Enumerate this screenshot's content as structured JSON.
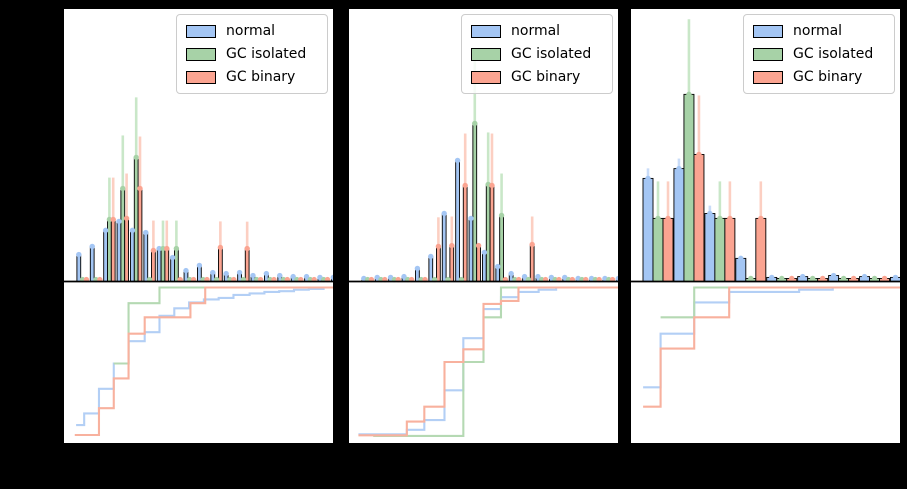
{
  "legend": {
    "items": [
      "normal",
      "GC isolated",
      "GC binary"
    ]
  },
  "colors": {
    "background": "#000000",
    "panel": "#ffffff",
    "bar_edge": "#000000",
    "divider": "#000000",
    "normal_fill": "#a4c6f4",
    "gc_isolated_fill": "#a7d2a7",
    "gc_binary_fill": "#fba491",
    "normal_err": "#c9dcf8",
    "gc_isolated_err": "#c9e7c8",
    "gc_binary_err": "#fccfc2",
    "normal_line": "#b3cff5",
    "gc_isolated_line": "#b5d9b3",
    "gc_binary_line": "#f8b19e",
    "legend_border": "#cccccc"
  },
  "chart_data": {
    "type": "bar",
    "subtype": "grouped histogram with error bars (top) + step CDF (bottom), three panels",
    "title": "",
    "xlabel": "",
    "ylabel": "",
    "ylim_hist": [
      0,
      1
    ],
    "ylim_cdf": [
      0,
      1
    ],
    "grid": false,
    "legend_position": "upper right",
    "series_names": [
      "normal",
      "GC isolated",
      "GC binary"
    ],
    "panels": [
      {
        "id": "left",
        "hist": {
          "first_frac": 0.048,
          "step_frac": 0.0498,
          "bar_frac": 0.01413,
          "series": [
            {
              "name": "normal",
              "values": [
                0.099,
                0.129,
                0.188,
                0.221,
                0.188,
                0.18,
                0.121,
                0.088,
                0.04,
                0.059,
                0.033,
                0.029,
                0.033,
                0.022,
                0.029,
                0.022,
                0.018,
                0.018,
                0.015,
                0.015
              ],
              "err_up": [
                0,
                0,
                0,
                0,
                0,
                0,
                0,
                0,
                0,
                0,
                0,
                0,
                0,
                0,
                0,
                0,
                0,
                0,
                0,
                0
              ]
            },
            {
              "name": "GC isolated",
              "values": [
                0.007,
                0.007,
                0.228,
                0.342,
                0.456,
                0.007,
                0.121,
                0.121,
                0.007,
                0.007,
                0.007,
                0.007,
                0.007,
                0.007,
                0.007,
                0.007,
                0.007,
                0.007,
                0.007,
                0.007
              ],
              "err_up": [
                0,
                0,
                0.154,
                0.195,
                0.221,
                0,
                0.103,
                0.103,
                0,
                0,
                0,
                0,
                0,
                0,
                0,
                0,
                0,
                0,
                0,
                0
              ]
            },
            {
              "name": "GC binary",
              "values": [
                0.007,
                0.007,
                0.228,
                0.232,
                0.342,
                0.114,
                0.121,
                0.007,
                0.007,
                0.007,
                0.125,
                0.007,
                0.121,
                0.007,
                0.007,
                0.007,
                0.007,
                0.007,
                0.007,
                0.007
              ],
              "err_up": [
                0,
                0,
                0.154,
                0.165,
                0.191,
                0.11,
                0.103,
                0,
                0,
                0,
                0.096,
                0,
                0.099,
                0,
                0,
                0,
                0,
                0,
                0,
                0
              ]
            }
          ]
        },
        "cdf": {
          "series": [
            {
              "name": "normal",
              "steps": [
                [
                  0.045,
                  0.077
                ],
                [
                  0.075,
                  0.155
                ],
                [
                  0.13,
                  0.32
                ],
                [
                  0.185,
                  0.49
                ],
                [
                  0.24,
                  0.64
                ],
                [
                  0.3,
                  0.7
                ],
                [
                  0.355,
                  0.81
                ],
                [
                  0.41,
                  0.86
                ],
                [
                  0.465,
                  0.9
                ],
                [
                  0.52,
                  0.92
                ],
                [
                  0.575,
                  0.93
                ],
                [
                  0.63,
                  0.95
                ],
                [
                  0.69,
                  0.96
                ],
                [
                  0.745,
                  0.97
                ],
                [
                  0.8,
                  0.975
                ],
                [
                  0.855,
                  0.985
                ],
                [
                  0.91,
                  0.99
                ],
                [
                  0.965,
                  1.0
                ]
              ]
            },
            {
              "name": "GC isolated",
              "steps": [
                [
                  0.185,
                  0.49
                ],
                [
                  0.24,
                  0.895
                ],
                [
                  0.355,
                  1.0
                ]
              ]
            },
            {
              "name": "GC binary",
              "steps": [
                [
                  0.04,
                  0.01
                ],
                [
                  0.13,
                  0.19
                ],
                [
                  0.185,
                  0.39
                ],
                [
                  0.24,
                  0.69
                ],
                [
                  0.3,
                  0.8
                ],
                [
                  0.47,
                  0.895
                ],
                [
                  0.525,
                  1.0
                ]
              ]
            }
          ]
        }
      },
      {
        "id": "middle",
        "hist": {
          "first_frac": 0.048,
          "step_frac": 0.0498,
          "bar_frac": 0.01413,
          "series": [
            {
              "name": "normal",
              "values": [
                0.011,
                0.015,
                0.015,
                0.018,
                0.048,
                0.092,
                0.25,
                0.445,
                0.232,
                0.107,
                0.055,
                0.029,
                0.018,
                0.018,
                0.015,
                0.015,
                0.011,
                0.011,
                0.011,
                0.011
              ],
              "err_up": [
                0,
                0,
                0,
                0,
                0,
                0,
                0,
                0,
                0,
                0,
                0,
                0,
                0,
                0,
                0,
                0,
                0,
                0,
                0,
                0
              ]
            },
            {
              "name": "GC isolated",
              "values": [
                0.007,
                0.007,
                0.007,
                0.007,
                0.007,
                0.007,
                0.007,
                0.007,
                0.581,
                0.357,
                0.243,
                0.007,
                0.007,
                0.007,
                0.007,
                0.007,
                0.007,
                0.007,
                0.007,
                0.007
              ],
              "err_up": [
                0,
                0,
                0,
                0,
                0,
                0,
                0,
                0,
                0.268,
                0.191,
                0.154,
                0,
                0,
                0,
                0,
                0,
                0,
                0,
                0,
                0
              ]
            },
            {
              "name": "GC binary",
              "values": [
                0.007,
                0.007,
                0.007,
                0.007,
                0.007,
                0.129,
                0.132,
                0.353,
                0.132,
                0.353,
                0.007,
                0.007,
                0.136,
                0.007,
                0.007,
                0.007,
                0.007,
                0.007,
                0.007,
                0.007
              ],
              "err_up": [
                0,
                0,
                0,
                0,
                0,
                0.107,
                0.107,
                0.191,
                0,
                0.191,
                0,
                0,
                0.103,
                0,
                0,
                0,
                0,
                0,
                0,
                0
              ]
            }
          ]
        },
        "cdf": {
          "series": [
            {
              "name": "normal",
              "steps": [
                [
                  0.035,
                  0.015
                ],
                [
                  0.215,
                  0.045
                ],
                [
                  0.28,
                  0.11
                ],
                [
                  0.355,
                  0.31
                ],
                [
                  0.425,
                  0.66
                ],
                [
                  0.5,
                  0.855
                ],
                [
                  0.565,
                  0.935
                ],
                [
                  0.63,
                  0.97
                ],
                [
                  0.705,
                  0.985
                ],
                [
                  0.77,
                  1.0
                ]
              ]
            },
            {
              "name": "GC isolated",
              "steps": [
                [
                  0.09,
                  0.004
                ],
                [
                  0.425,
                  0.5
                ],
                [
                  0.5,
                  0.8
                ],
                [
                  0.565,
                  1.0
                ]
              ]
            },
            {
              "name": "GC binary",
              "steps": [
                [
                  0.035,
                  0.008
                ],
                [
                  0.215,
                  0.1
                ],
                [
                  0.28,
                  0.2
                ],
                [
                  0.355,
                  0.5
                ],
                [
                  0.425,
                  0.585
                ],
                [
                  0.5,
                  0.89
                ],
                [
                  0.565,
                  0.91
                ],
                [
                  0.63,
                  1.0
                ]
              ]
            }
          ]
        }
      },
      {
        "id": "right",
        "hist": {
          "first_frac": 0.0446,
          "step_frac": 0.115,
          "bar_frac": 0.0372,
          "series": [
            {
              "name": "normal",
              "values": [
                0.379,
                0.415,
                0.25,
                0.085,
                0.015,
                0.018,
                0.022,
                0.018,
                0.015
              ],
              "err_up": [
                0.037,
                0.037,
                0.029,
                0,
                0,
                0,
                0,
                0,
                0
              ]
            },
            {
              "name": "GC isolated",
              "values": [
                0.232,
                0.688,
                0.232,
                0.011,
                0.011,
                0.011,
                0.011,
                0.011,
                0.011
              ],
              "err_up": [
                0.136,
                0.276,
                0.136,
                0,
                0,
                0,
                0,
                0,
                0
              ]
            },
            {
              "name": "GC binary",
              "values": [
                0.232,
                0.467,
                0.232,
                0.232,
                0.011,
                0.011,
                0.011,
                0.011,
                0.011
              ],
              "err_up": [
                0.136,
                0.217,
                0.136,
                0.136,
                0,
                0,
                0,
                0,
                0
              ]
            }
          ]
        },
        "cdf": {
          "series": [
            {
              "name": "normal",
              "steps": [
                [
                  0.045,
                  0.33
                ],
                [
                  0.11,
                  0.69
                ],
                [
                  0.235,
                  0.9
                ],
                [
                  0.365,
                  0.97
                ],
                [
                  0.625,
                  0.985
                ],
                [
                  0.75,
                  1.0
                ]
              ]
            },
            {
              "name": "GC isolated",
              "steps": [
                [
                  0.11,
                  0.8
                ],
                [
                  0.235,
                  1.0
                ]
              ]
            },
            {
              "name": "GC binary",
              "steps": [
                [
                  0.045,
                  0.2
                ],
                [
                  0.11,
                  0.59
                ],
                [
                  0.235,
                  0.8
                ],
                [
                  0.365,
                  1.0
                ]
              ]
            }
          ]
        }
      }
    ]
  }
}
